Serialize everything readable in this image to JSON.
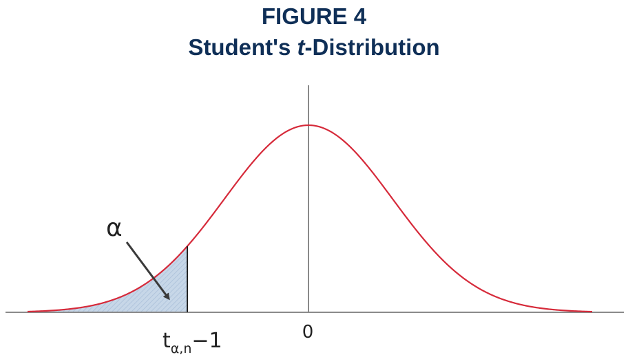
{
  "figure": {
    "number": "FIGURE 4",
    "title_prefix": "Student's ",
    "title_italic": "t",
    "title_suffix": "-Distribution"
  },
  "labels": {
    "alpha": "α",
    "zero": "0",
    "critical_main": "t",
    "critical_sub": "α,n",
    "critical_suffix": "−1"
  },
  "colors": {
    "title": "#0f2f57",
    "curve": "#d62a3a",
    "shade": "#b9cde3",
    "axis": "#8a8a8a"
  }
}
